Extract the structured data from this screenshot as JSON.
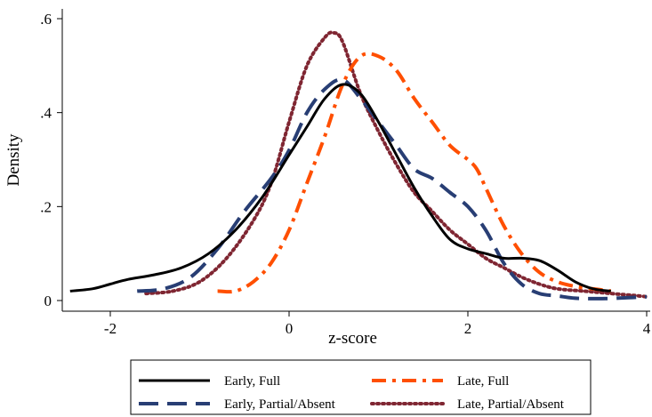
{
  "chart_data": {
    "type": "line",
    "title": "",
    "xlabel": "z-score",
    "ylabel": "Density",
    "xlim": [
      -2.5,
      4.0
    ],
    "ylim": [
      0,
      0.6
    ],
    "xticks": [
      -2,
      0,
      2,
      4
    ],
    "xtick_labels": [
      "-2",
      "0",
      "2",
      "4"
    ],
    "yticks": [
      0,
      0.2,
      0.4,
      0.6
    ],
    "ytick_labels": [
      "0",
      ".2",
      ".4",
      ".6"
    ],
    "grid": false,
    "legend_placement": "bottom",
    "series": [
      {
        "name": "Early, Full",
        "color": "#000000",
        "style": "solid",
        "x": [
          -2.45,
          -2.2,
          -2.0,
          -1.8,
          -1.5,
          -1.2,
          -0.9,
          -0.6,
          -0.3,
          0.0,
          0.2,
          0.4,
          0.6,
          0.8,
          1.0,
          1.2,
          1.4,
          1.6,
          1.8,
          2.0,
          2.2,
          2.4,
          2.6,
          2.8,
          3.0,
          3.2,
          3.4,
          3.6
        ],
        "y": [
          0.02,
          0.025,
          0.035,
          0.045,
          0.055,
          0.07,
          0.1,
          0.15,
          0.22,
          0.31,
          0.37,
          0.43,
          0.46,
          0.44,
          0.38,
          0.31,
          0.24,
          0.18,
          0.13,
          0.11,
          0.1,
          0.09,
          0.09,
          0.085,
          0.065,
          0.04,
          0.025,
          0.02
        ]
      },
      {
        "name": "Early, Partial/Absent",
        "color": "#283e74",
        "style": "dashed",
        "x": [
          -1.7,
          -1.4,
          -1.1,
          -0.8,
          -0.5,
          -0.2,
          0.0,
          0.2,
          0.4,
          0.6,
          0.8,
          1.0,
          1.2,
          1.4,
          1.6,
          1.8,
          2.0,
          2.2,
          2.4,
          2.6,
          2.8,
          3.0,
          3.2,
          3.5,
          3.8,
          4.0
        ],
        "y": [
          0.02,
          0.025,
          0.05,
          0.11,
          0.19,
          0.26,
          0.32,
          0.4,
          0.45,
          0.47,
          0.43,
          0.38,
          0.33,
          0.28,
          0.26,
          0.23,
          0.2,
          0.15,
          0.08,
          0.035,
          0.015,
          0.01,
          0.005,
          0.004,
          0.006,
          0.008
        ]
      },
      {
        "name": "Late, Full",
        "color": "#ff4f00",
        "style": "dashdot",
        "x": [
          -0.8,
          -0.6,
          -0.4,
          -0.2,
          0.0,
          0.2,
          0.4,
          0.6,
          0.8,
          1.0,
          1.2,
          1.4,
          1.6,
          1.8,
          2.0,
          2.1,
          2.2,
          2.4,
          2.6,
          2.8,
          3.0,
          3.2,
          3.4,
          3.6
        ],
        "y": [
          0.02,
          0.02,
          0.04,
          0.08,
          0.15,
          0.25,
          0.35,
          0.46,
          0.52,
          0.52,
          0.49,
          0.43,
          0.38,
          0.33,
          0.3,
          0.28,
          0.24,
          0.16,
          0.1,
          0.06,
          0.04,
          0.03,
          0.025,
          0.02
        ]
      },
      {
        "name": "Late, Partial/Absent",
        "color": "#7f2632",
        "style": "dotted",
        "x": [
          -1.6,
          -1.3,
          -1.0,
          -0.7,
          -0.4,
          -0.2,
          0.0,
          0.2,
          0.4,
          0.5,
          0.6,
          0.8,
          1.0,
          1.2,
          1.4,
          1.6,
          1.8,
          2.0,
          2.2,
          2.4,
          2.6,
          2.8,
          3.0,
          3.3,
          3.6,
          3.9,
          4.0
        ],
        "y": [
          0.015,
          0.02,
          0.04,
          0.09,
          0.17,
          0.25,
          0.38,
          0.5,
          0.56,
          0.57,
          0.55,
          0.44,
          0.36,
          0.29,
          0.23,
          0.19,
          0.15,
          0.12,
          0.09,
          0.07,
          0.05,
          0.035,
          0.025,
          0.02,
          0.015,
          0.01,
          0.008
        ]
      }
    ]
  }
}
